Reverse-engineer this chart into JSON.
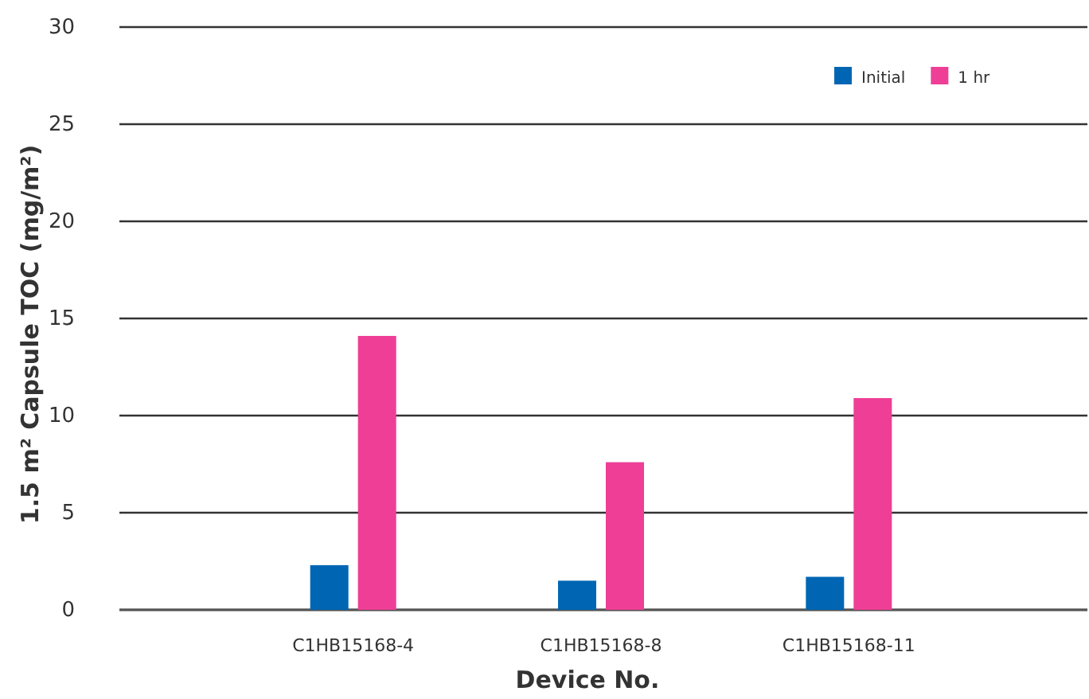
{
  "chart_data": {
    "type": "bar",
    "xlabel": "Device No.",
    "ylabel": "1.5 m² Capsule TOC (mg/m²)",
    "categories": [
      "C1HB15168-4",
      "C1HB15168-8",
      "C1HB15168-11"
    ],
    "series": [
      {
        "name": "Initial",
        "color": "#0066b3",
        "values": [
          2.3,
          1.5,
          1.7
        ]
      },
      {
        "name": "1 hr",
        "color": "#ee3e96",
        "values": [
          14.1,
          7.6,
          10.9
        ]
      }
    ],
    "ylim": [
      0,
      30
    ],
    "yticks": [
      0,
      5,
      10,
      15,
      20,
      25,
      30
    ],
    "grid": "y",
    "legend": "top right"
  }
}
